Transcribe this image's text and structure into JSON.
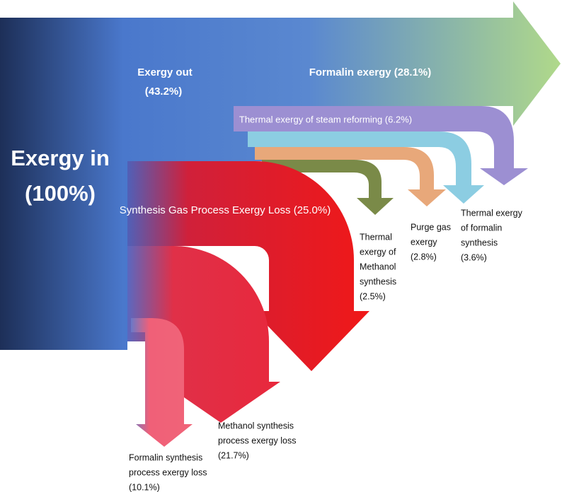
{
  "flows": [
    {
      "label": [
        "Exergy in",
        "(100%)"
      ]
    },
    {
      "label": [
        "Exergy out",
        "(43.2%)"
      ]
    },
    {
      "label": [
        "Formalin exergy (28.1%)"
      ]
    },
    {
      "label": [
        "Thermal exergy of steam reforming (6.2%)"
      ]
    },
    {
      "label": [
        "Synthesis Gas Process Exergy Loss (25.0%)"
      ]
    },
    {
      "label": [
        "Thermal",
        "exergy of",
        "Methanol",
        "synthesis",
        "(2.5%)"
      ]
    },
    {
      "label": [
        "Purge gas",
        "exergy",
        "(2.8%)"
      ]
    },
    {
      "label": [
        "Thermal exergy",
        "of formalin",
        "synthesis",
        "(3.6%)"
      ]
    },
    {
      "label": [
        "Methanol synthesis",
        "process exergy loss",
        "(21.7%)"
      ]
    },
    {
      "label": [
        "Formalin synthesis",
        "process exergy loss",
        "(10.1%)"
      ]
    }
  ]
}
